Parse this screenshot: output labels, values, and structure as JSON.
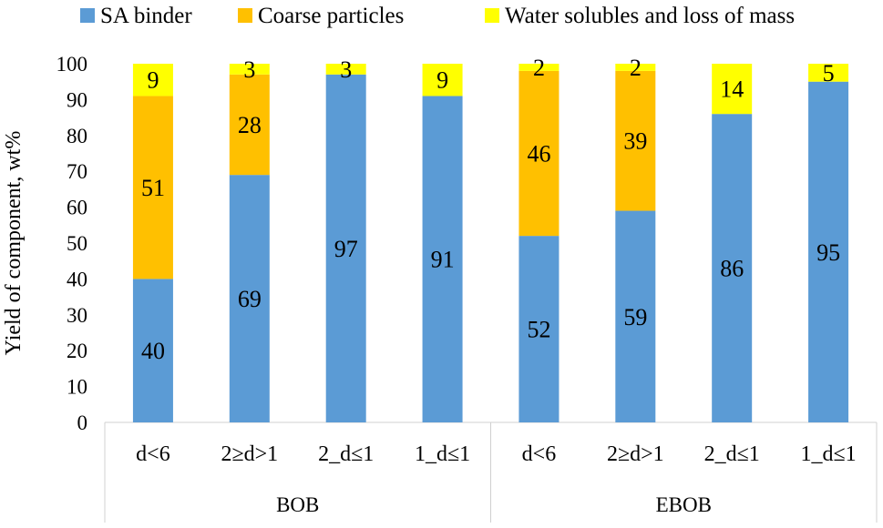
{
  "chart_data": {
    "type": "bar",
    "stacked": true,
    "title": "",
    "xlabel": "",
    "ylabel": "Yield of component, wt%",
    "ylim": [
      0,
      100
    ],
    "yticks": [
      0,
      10,
      20,
      30,
      40,
      50,
      60,
      70,
      80,
      90,
      100
    ],
    "grid": false,
    "legend_position": "top",
    "groups": [
      {
        "label": "BOB",
        "categories": [
          "d<6",
          "2≥d>1",
          "2_d≤1",
          "1_d≤1"
        ]
      },
      {
        "label": "EBOB",
        "categories": [
          "d<6",
          "2≥d>1",
          "2_d≤1",
          "1_d≤1"
        ]
      }
    ],
    "categories": [
      "d<6",
      "2≥d>1",
      "2_d≤1",
      "1_d≤1",
      "d<6",
      "2≥d>1",
      "2_d≤1",
      "1_d≤1"
    ],
    "series": [
      {
        "name": "SA binder",
        "color": "#5B9BD5",
        "values": [
          40,
          69,
          97,
          91,
          52,
          59,
          86,
          95
        ]
      },
      {
        "name": "Coarse particles",
        "color": "#FFC000",
        "values": [
          51,
          28,
          0,
          0,
          46,
          39,
          0,
          0
        ]
      },
      {
        "name": "Water solubles and loss of mass",
        "color": "#FFFF00",
        "values": [
          9,
          3,
          3,
          9,
          2,
          2,
          14,
          5
        ]
      }
    ]
  }
}
